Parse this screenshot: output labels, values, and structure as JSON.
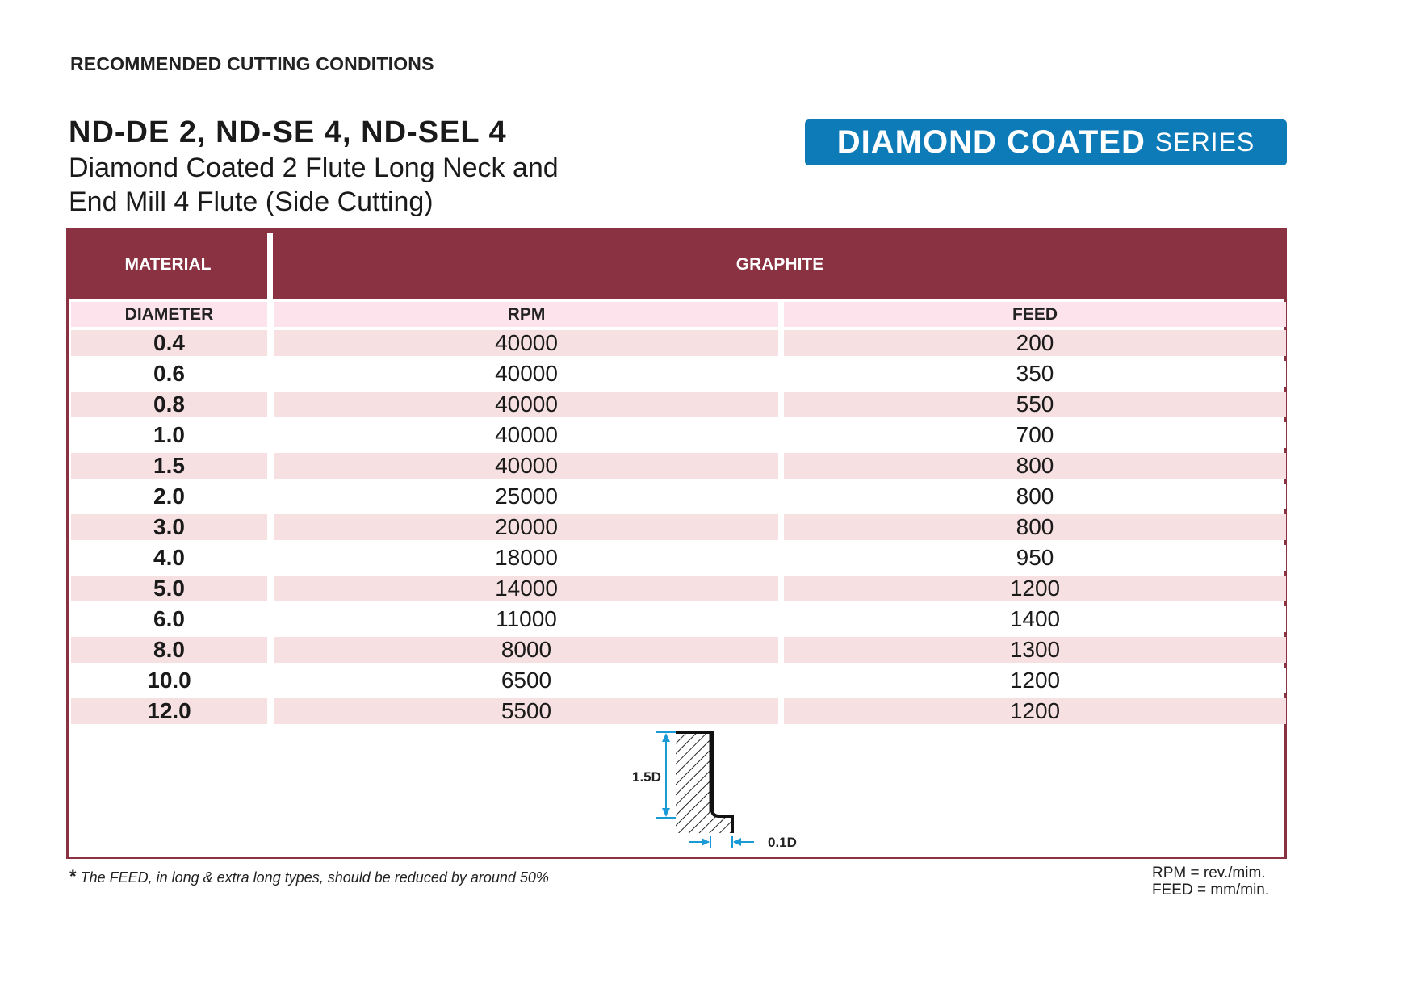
{
  "header": {
    "section_title": "RECOMMENDED CUTTING CONDITIONS",
    "product_codes": "ND-DE 2, ND-SE 4, ND-SEL 4",
    "description_line1": "Diamond Coated 2 Flute Long Neck and",
    "description_line2": "End Mill 4 Flute (Side Cutting)"
  },
  "badge": {
    "strong_text": "DIAMOND COATED",
    "light_text": "SERIES",
    "color": "#0d7bb8"
  },
  "table": {
    "header_color": "#8a3242",
    "material_label": "MATERIAL",
    "material_value": "GRAPHITE",
    "columns": [
      "DIAMETER",
      "RPM",
      "FEED"
    ],
    "rows": [
      {
        "diameter": "0.4",
        "rpm": "40000",
        "feed": "200"
      },
      {
        "diameter": "0.6",
        "rpm": "40000",
        "feed": "350"
      },
      {
        "diameter": "0.8",
        "rpm": "40000",
        "feed": "550"
      },
      {
        "diameter": "1.0",
        "rpm": "40000",
        "feed": "700"
      },
      {
        "diameter": "1.5",
        "rpm": "40000",
        "feed": "800"
      },
      {
        "diameter": "2.0",
        "rpm": "25000",
        "feed": "800"
      },
      {
        "diameter": "3.0",
        "rpm": "20000",
        "feed": "800"
      },
      {
        "diameter": "4.0",
        "rpm": "18000",
        "feed": "950"
      },
      {
        "diameter": "5.0",
        "rpm": "14000",
        "feed": "1200"
      },
      {
        "diameter": "6.0",
        "rpm": "11000",
        "feed": "1400"
      },
      {
        "diameter": "8.0",
        "rpm": "8000",
        "feed": "1300"
      },
      {
        "diameter": "10.0",
        "rpm": "6500",
        "feed": "1200"
      },
      {
        "diameter": "12.0",
        "rpm": "5500",
        "feed": "1200"
      }
    ]
  },
  "diagram": {
    "depth_label": "1.5D",
    "width_label": "0.1D",
    "dimension_color": "#1a9ad6"
  },
  "footnote": {
    "star": "*",
    "text": "The FEED, in long & extra long types, should be reduced by around 50%"
  },
  "units": {
    "rpm": "RPM = rev./mim.",
    "feed": "FEED = mm/min."
  }
}
